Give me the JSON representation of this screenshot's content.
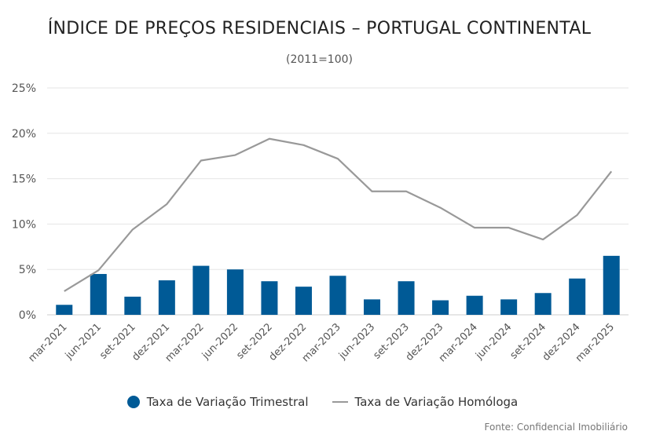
{
  "chart_data": {
    "type": "bar",
    "title": "ÍNDICE DE PREÇOS RESIDENCIAIS – PORTUGAL CONTINENTAL",
    "subtitle": "(2011=100)",
    "categories": [
      "mar-2021",
      "jun-2021",
      "set-2021",
      "dez-2021",
      "mar-2022",
      "jun-2022",
      "set-2022",
      "dez-2022",
      "mar-2023",
      "jun-2023",
      "set-2023",
      "dez-2023",
      "mar-2024",
      "jun-2024",
      "set-2024",
      "dez-2024",
      "mar-2025"
    ],
    "series": [
      {
        "name": "Taxa de Variação Trimestral",
        "type": "bar",
        "color": "#005a96",
        "values": [
          1.1,
          4.5,
          2.0,
          3.8,
          5.4,
          5.0,
          3.7,
          3.1,
          4.3,
          1.7,
          3.7,
          1.6,
          2.1,
          1.7,
          2.4,
          4.0,
          6.5
        ]
      },
      {
        "name": "Taxa de Variação Homóloga",
        "type": "line",
        "color": "#999999",
        "values": [
          2.6,
          4.9,
          9.4,
          12.2,
          17.0,
          17.6,
          19.4,
          18.7,
          17.2,
          13.6,
          13.6,
          11.8,
          9.6,
          9.6,
          8.3,
          11.0,
          15.8
        ]
      }
    ],
    "y_ticks": [
      "0%",
      "5%",
      "10%",
      "15%",
      "20%",
      "25%"
    ],
    "ylim": [
      0,
      25
    ],
    "grid": true,
    "legend_position": "bottom"
  },
  "source": "Fonte: Confidencial Imobiliário"
}
